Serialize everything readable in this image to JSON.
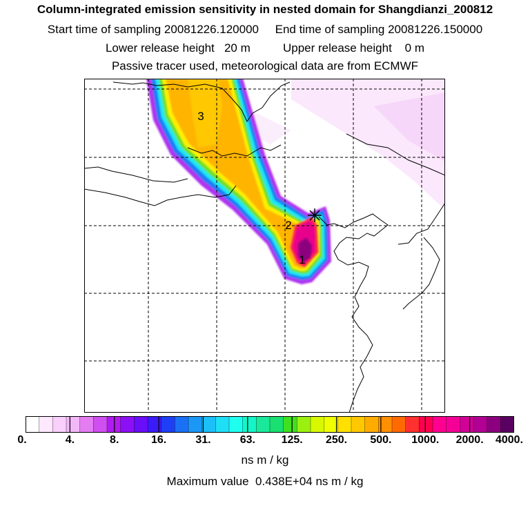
{
  "header": {
    "title": "Column-integrated emission sensitivity in nested domain for Shangdianzi_200812",
    "sampling_line": "Start time of sampling 20081226.120000     End time of sampling 20081226.150000",
    "release_line": "Lower release height   20 m          Upper release height    0 m",
    "tracer_line": "Passive tracer used, meteorological data are from ECMWF"
  },
  "map": {
    "markers": [
      {
        "label": "1"
      },
      {
        "label": "2"
      },
      {
        "label": "3"
      }
    ],
    "receptor_marker": "star-cross"
  },
  "colorbar": {
    "tick_labels": [
      "0.",
      "4.",
      "8.",
      "16.",
      "31.",
      "63.",
      "125.",
      "250.",
      "500.",
      "1000.",
      "2000.",
      "4000."
    ],
    "colors": [
      "#ffffff",
      "#fde8fd",
      "#f9d0fb",
      "#f2b8f8",
      "#e47df1",
      "#cf4ff0",
      "#b21bf0",
      "#8c10f6",
      "#6a0df8",
      "#3b1bf7",
      "#1e3ff6",
      "#1b71f5",
      "#1b98f6",
      "#1cc0f8",
      "#1fdff7",
      "#1ffff0",
      "#15f5c8",
      "#1ae89a",
      "#19e070",
      "#40e020",
      "#9cf010",
      "#d8f800",
      "#f0ff00",
      "#ffe000",
      "#ffc800",
      "#ffac00",
      "#ff9000",
      "#ff6a00",
      "#ff3030",
      "#ff0050",
      "#ff0090",
      "#f40096",
      "#d10096",
      "#b20094",
      "#8c0080",
      "#5a0060"
    ],
    "unit": "ns m / kg"
  },
  "footer": {
    "maximum": "Maximum value  0.438E+04 ns m / kg"
  }
}
